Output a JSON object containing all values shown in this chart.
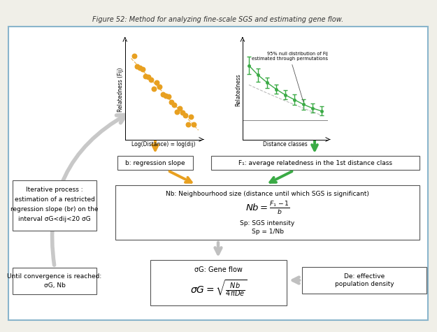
{
  "title": "Figure 52: Method for analyzing fine-scale SGS and estimating gene flow.",
  "bg_color": "#f0efe8",
  "box_bg": "#ffffff",
  "border_color": "#8ab5cc",
  "orange_color": "#e8a020",
  "green_color": "#3aaa45",
  "gray_arrow": "#c0c0c0",
  "scatter_xlabel": "Log(Distance) = log(dij)",
  "scatter_ylabel": "Relatedness (Fij)",
  "right_xlabel": "Distance classes",
  "right_ylabel": "Relatedness",
  "right_annot": "95% null distribution of Fij\nestimated through permutations",
  "box_b": "b: regression slope",
  "box_f1": "F₁: average relatedness in the 1st distance class",
  "box_nb_title": "Nb: Neighbourhood size (distance until which SGS is significant)",
  "box_nb_formula": "$Nb = \\frac{F_1-1}{b}$",
  "box_nb_sp1": "Sp: SGS intensity",
  "box_nb_sp2": "Sp = 1/Nb",
  "box_gf_title": "σG: Gene flow",
  "box_gf_formula": "$\\sigma G = \\sqrt{\\frac{Nb}{4\\pi De}}$",
  "box_iter1": "Iterative process :",
  "box_iter2": "estimation of a restricted",
  "box_iter3": "regression slope (br) on the",
  "box_iter4": "interval σG<dij<20 σG",
  "box_conv1": "Until convergence is reached:",
  "box_conv2": "σG, Nb",
  "box_de": "De: effective\npopulation density"
}
